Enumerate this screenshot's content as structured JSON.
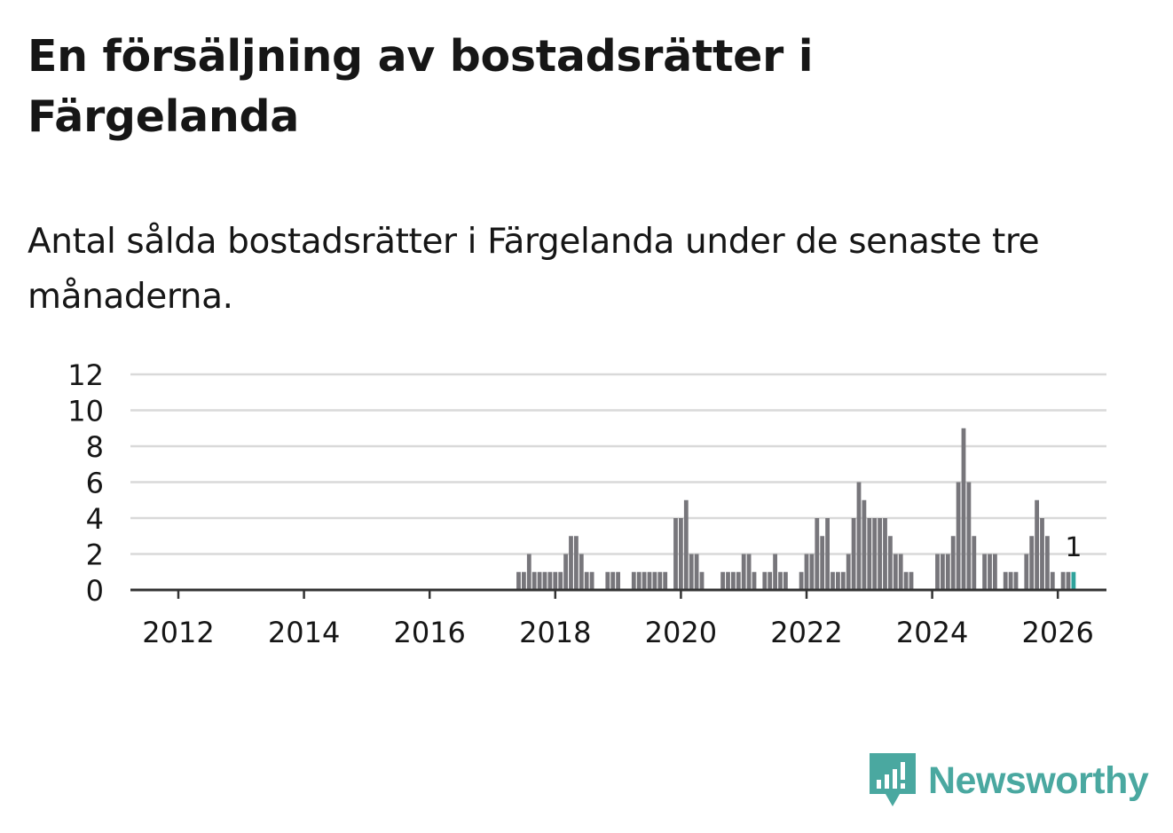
{
  "header": {
    "title": "En försäljning av bostadsrätter i Färgelanda",
    "subtitle": "Antal sålda bostadsrätter i Färgelanda under de senaste tre månaderna."
  },
  "brand": {
    "name": "Newsworthy",
    "logo_icon": "newsworthy-bar-chart-icon",
    "color": "#4aa8a0"
  },
  "colors": {
    "bar": "#77767b",
    "highlight": "#2fa39c",
    "grid": "#d9d9d9",
    "axis": "#333333",
    "text": "#161616"
  },
  "chart_data": {
    "type": "bar",
    "title": "Antal sålda bostadsrätter i Färgelanda",
    "xlabel": "",
    "ylabel": "",
    "ylim": [
      0,
      12
    ],
    "yticks": [
      "0",
      "2",
      "4",
      "6",
      "8",
      "10",
      "12"
    ],
    "xticks": [
      "2012",
      "2014",
      "2016",
      "2018",
      "2020",
      "2022",
      "2024",
      "2026"
    ],
    "x_unit": "month",
    "x_start": "2011-03",
    "x_end": "2026-01",
    "highlight_label": "1",
    "values": [
      0,
      0,
      0,
      0,
      0,
      0,
      0,
      0,
      0,
      0,
      0,
      0,
      0,
      0,
      0,
      0,
      0,
      0,
      0,
      0,
      0,
      0,
      0,
      0,
      0,
      0,
      0,
      0,
      0,
      0,
      0,
      0,
      0,
      0,
      0,
      0,
      0,
      0,
      0,
      0,
      0,
      0,
      0,
      0,
      0,
      0,
      0,
      0,
      0,
      0,
      0,
      0,
      0,
      0,
      0,
      0,
      0,
      0,
      0,
      0,
      0,
      0,
      0,
      0,
      0,
      0,
      0,
      0,
      0,
      0,
      0,
      0,
      0,
      0,
      0,
      1,
      1,
      2,
      1,
      1,
      1,
      1,
      1,
      1,
      2,
      3,
      3,
      2,
      1,
      1,
      0,
      0,
      1,
      1,
      1,
      0,
      0,
      1,
      1,
      1,
      1,
      1,
      1,
      1,
      0,
      4,
      4,
      5,
      2,
      2,
      1,
      0,
      0,
      0,
      1,
      1,
      1,
      1,
      2,
      2,
      1,
      0,
      1,
      1,
      2,
      1,
      1,
      0,
      0,
      1,
      2,
      2,
      4,
      3,
      4,
      1,
      1,
      1,
      2,
      4,
      6,
      5,
      4,
      4,
      4,
      4,
      3,
      2,
      2,
      1,
      1,
      0,
      0,
      0,
      0,
      2,
      2,
      2,
      3,
      6,
      9,
      6,
      3,
      0,
      2,
      2,
      2,
      0,
      1,
      1,
      1,
      0,
      2,
      3,
      5,
      4,
      3,
      1,
      0,
      1,
      1,
      1
    ]
  }
}
